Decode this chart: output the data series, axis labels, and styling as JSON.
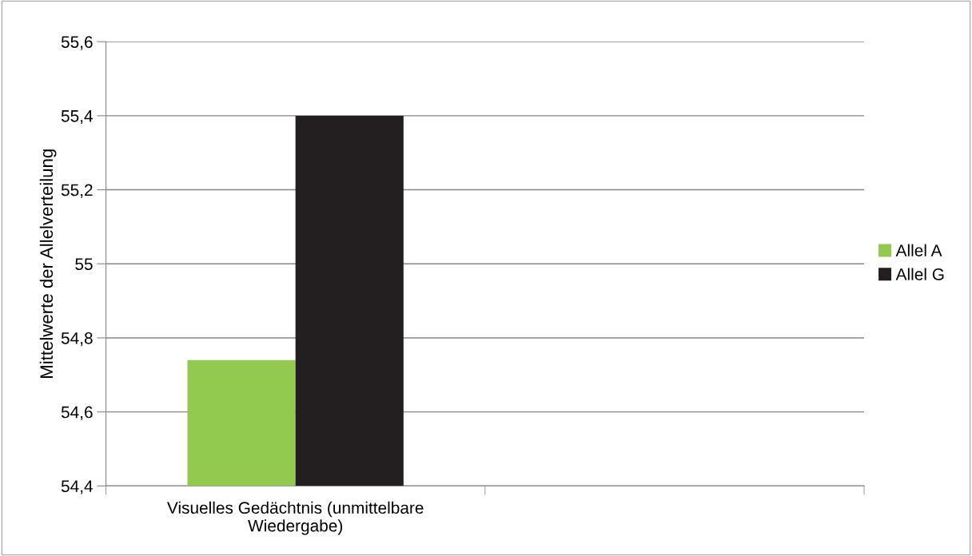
{
  "chart_data": {
    "type": "bar",
    "ylabel": "Mittelwerte der Allelverteilung",
    "categories": [
      "Visuelles Gedächtnis (unmittelbare\nWiedergabe)",
      null
    ],
    "series": [
      {
        "name": "Allel A",
        "color": "#92c94f",
        "values": [
          54.74,
          null
        ]
      },
      {
        "name": "Allel G",
        "color": "#231f20",
        "values": [
          55.4,
          null
        ]
      }
    ],
    "ylim": [
      54.4,
      55.6
    ],
    "yticks": [
      {
        "value": 54.4,
        "label": "54,4"
      },
      {
        "value": 54.6,
        "label": "54,6"
      },
      {
        "value": 54.8,
        "label": "54,8"
      },
      55,
      {
        "value": 55.2,
        "label": "55,2"
      },
      {
        "value": 55.4,
        "label": "55,4"
      },
      {
        "value": 55.6,
        "label": "55,6"
      }
    ],
    "grid": "y",
    "legend": "right"
  }
}
